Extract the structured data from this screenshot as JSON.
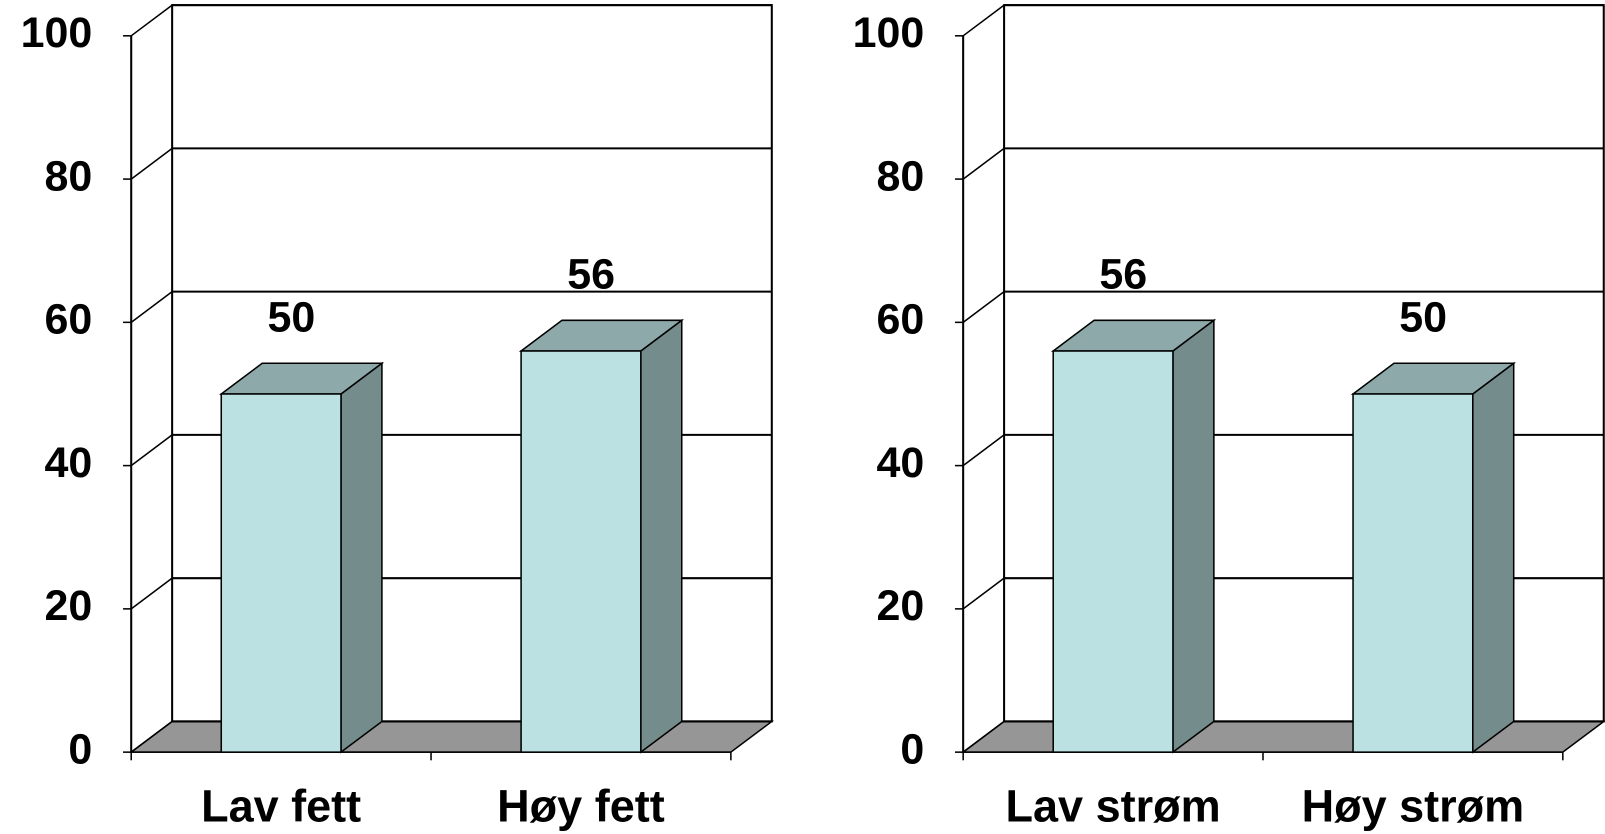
{
  "chart_data": [
    {
      "type": "bar3d",
      "categories": [
        "Lav fett",
        "Høy fett"
      ],
      "values": [
        50,
        56
      ],
      "color": "#bce1e3",
      "ylim": [
        0,
        100
      ],
      "yticks": [
        0,
        20,
        40,
        60,
        80,
        100
      ],
      "grid": true
    },
    {
      "type": "bar3d",
      "categories": [
        "Lav strøm",
        "Høy strøm"
      ],
      "values": [
        56,
        50
      ],
      "color": "#bce1e3",
      "ylim": [
        0,
        100
      ],
      "yticks": [
        0,
        20,
        40,
        60,
        80,
        100
      ],
      "grid": true
    }
  ]
}
